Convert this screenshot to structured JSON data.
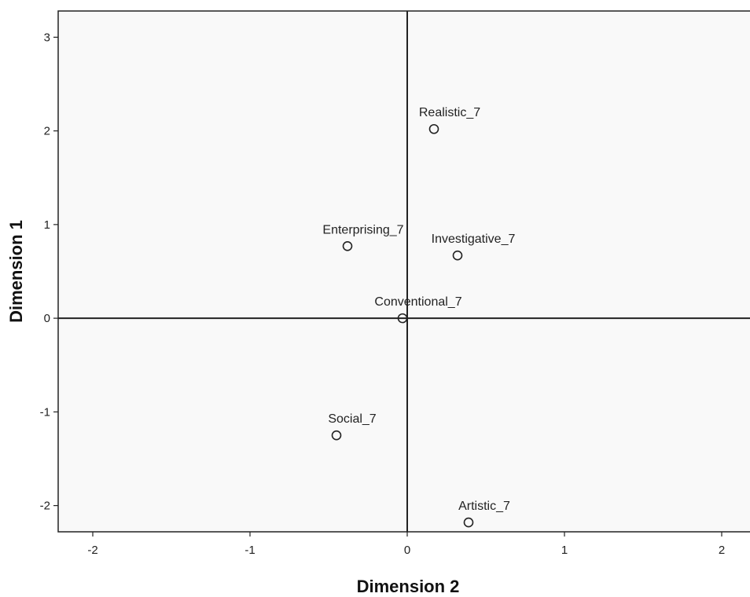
{
  "chart_data": {
    "type": "scatter",
    "title": "",
    "xlabel": "Dimension 2",
    "ylabel": "Dimension 1",
    "xlim": [
      -2.22,
      2.18
    ],
    "ylim": [
      -2.28,
      3.28
    ],
    "xticks": [
      -2,
      -1,
      0,
      1,
      2
    ],
    "yticks": [
      -2,
      -1,
      0,
      1,
      2,
      3
    ],
    "xtick_labels": [
      "-2",
      "-1",
      "0",
      "1",
      "2"
    ],
    "ytick_labels": [
      "-2",
      "-1",
      "0",
      "1",
      "2",
      "3"
    ],
    "grid": false,
    "reference_lines": {
      "x": 0,
      "y": 0
    },
    "marker": "hollow-circle",
    "colors": {
      "plot_background": "#f9f9f9",
      "frame": "#222222",
      "marker": "#222222",
      "reference_line": "#222222"
    },
    "points": [
      {
        "label": "Realistic_7",
        "x": 0.17,
        "y": 2.02
      },
      {
        "label": "Enterprising_7",
        "x": -0.38,
        "y": 0.77
      },
      {
        "label": "Investigative_7",
        "x": 0.32,
        "y": 0.67
      },
      {
        "label": "Conventional_7",
        "x": -0.03,
        "y": 0.0
      },
      {
        "label": "Social_7",
        "x": -0.45,
        "y": -1.25
      },
      {
        "label": "Artistic_7",
        "x": 0.39,
        "y": -2.18
      }
    ]
  }
}
